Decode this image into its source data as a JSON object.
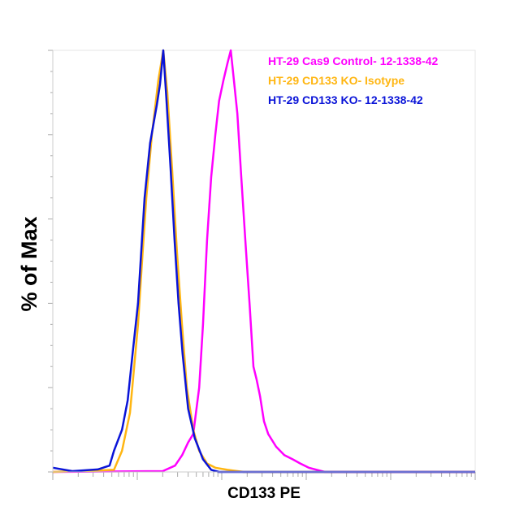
{
  "chart_data": {
    "type": "line",
    "title": "",
    "xlabel": "CD133 PE",
    "ylabel": "% of Max",
    "xscale": "log",
    "xlim": [
      1,
      100000
    ],
    "ylim": [
      0,
      100
    ],
    "grid": false,
    "legend_placement": "top-right",
    "series": [
      {
        "name": "HT-29 Cas9 Control- 12-1338-42",
        "color": "#ff00ff",
        "x": [
          1,
          20,
          28,
          34,
          40,
          46,
          54,
          60,
          67,
          75,
          84,
          93,
          105,
          117,
          128,
          139,
          153,
          170,
          190,
          213,
          237,
          258,
          284,
          316,
          355,
          440,
          550,
          690,
          850,
          1070,
          1340,
          1660,
          100000
        ],
        "y": [
          0,
          0.2,
          1.5,
          4,
          7,
          9,
          20,
          35,
          55,
          70,
          80,
          88,
          93,
          97,
          100,
          93,
          85,
          70,
          55,
          40,
          25,
          22,
          18,
          12,
          9,
          6,
          4,
          3,
          2,
          1,
          0.5,
          0,
          0
        ]
      },
      {
        "name": "HT-29 CD133 KO- Isotype",
        "color": "#ffb612",
        "x": [
          1,
          5.3,
          6.6,
          8.2,
          9.2,
          10.2,
          11.4,
          12.8,
          14.9,
          17.8,
          20.3,
          22.7,
          25.8,
          29.5,
          33.8,
          38.6,
          46,
          54,
          67,
          84,
          117,
          182,
          100000
        ],
        "y": [
          0,
          0.5,
          5,
          14,
          25,
          35,
          50,
          65,
          80,
          93,
          100,
          90,
          72,
          52,
          35,
          20,
          10,
          5,
          2,
          1,
          0.5,
          0,
          0
        ]
      },
      {
        "name": "HT-29 CD133 KO- 12-1338-42",
        "color": "#0a14d8",
        "x": [
          1,
          1.7,
          3.4,
          4.7,
          5.3,
          6.6,
          7.7,
          8.8,
          10.2,
          12.2,
          14.2,
          17,
          18.6,
          20.3,
          22.2,
          24.8,
          27.6,
          30.8,
          34.4,
          40,
          48,
          60,
          75,
          93,
          100000
        ],
        "y": [
          1,
          0.2,
          0.6,
          1.5,
          5,
          10,
          17,
          28,
          40,
          65,
          78,
          87,
          92,
          100,
          88,
          72,
          55,
          40,
          28,
          15,
          8,
          3,
          0.5,
          0,
          0
        ]
      }
    ]
  }
}
